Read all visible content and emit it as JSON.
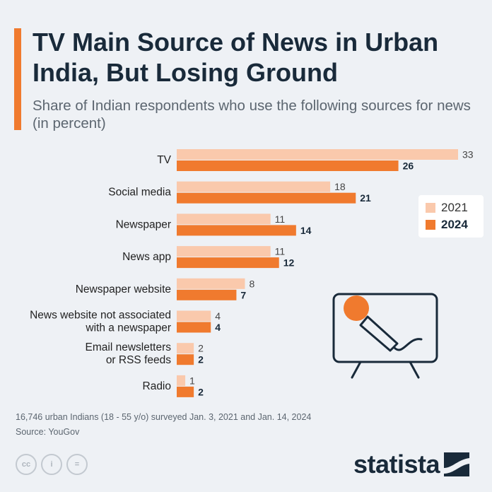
{
  "header": {
    "title": "TV Main Source of News in Urban India, But Losing Ground",
    "subtitle": "Share of Indian respondents who use the following sources for news (in percent)"
  },
  "colors": {
    "accent": "#f07a2e",
    "light": "#fac9ac",
    "dark": "#f07a2e",
    "text": "#192a3a"
  },
  "legend": {
    "label_2021": "2021",
    "label_2024": "2024"
  },
  "chart_data": {
    "type": "bar",
    "orientation": "horizontal",
    "title": "TV Main Source of News in Urban India, But Losing Ground",
    "categories": [
      [
        "TV"
      ],
      [
        "Social media"
      ],
      [
        "Newspaper"
      ],
      [
        "News app"
      ],
      [
        "Newspaper website"
      ],
      [
        "News website not associated",
        "with a newspaper"
      ],
      [
        "Email newsletters",
        "or RSS feeds"
      ],
      [
        "Radio"
      ]
    ],
    "series": [
      {
        "name": "2021",
        "values": [
          33,
          18,
          11,
          11,
          8,
          4,
          2,
          1
        ]
      },
      {
        "name": "2024",
        "values": [
          26,
          21,
          14,
          12,
          7,
          4,
          2,
          2
        ]
      }
    ],
    "xlim": [
      0,
      33
    ],
    "xlabel": "",
    "ylabel": "",
    "legend_position": "right"
  },
  "footer": {
    "note": "16,746 urban Indians (18 - 55 y/o) surveyed Jan. 3, 2021 and Jan. 14, 2024",
    "source": "Source: YouGov",
    "brand": "statista",
    "cc_labels": [
      "cc",
      "i",
      "="
    ]
  },
  "illustration": {
    "icon": "tv-microphone-icon"
  }
}
